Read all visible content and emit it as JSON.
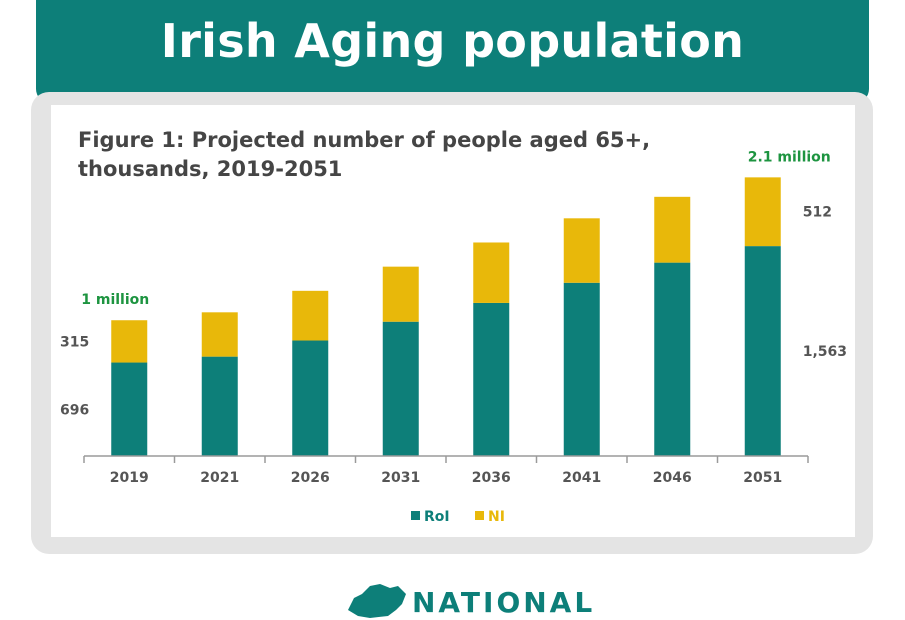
{
  "header": {
    "title": "Irish Aging population"
  },
  "figure": {
    "title": "Figure 1: Projected number of people aged 65+, thousands, 2019-2051"
  },
  "chart_data": {
    "type": "bar",
    "stacked": true,
    "categories": [
      "2019",
      "2021",
      "2026",
      "2031",
      "2036",
      "2041",
      "2046",
      "2051"
    ],
    "series": [
      {
        "name": "RoI",
        "color": "#0d7f79",
        "values": [
          696,
          740,
          860,
          1000,
          1140,
          1290,
          1440,
          1563
        ]
      },
      {
        "name": "NI",
        "color": "#e8b80a",
        "values": [
          315,
          330,
          370,
          410,
          450,
          480,
          490,
          512
        ]
      }
    ],
    "ylim": [
      0,
      2100
    ],
    "grid": false,
    "legend_position": "bottom-center",
    "annotations": [
      {
        "category": "2019",
        "segment_labels": [
          "696",
          "315"
        ],
        "total_label": "1 million"
      },
      {
        "category": "2051",
        "segment_labels": [
          "1,563",
          "512"
        ],
        "total_label": "2.1 million"
      }
    ]
  },
  "legend": [
    {
      "label": "RoI",
      "color": "#0d7f79"
    },
    {
      "label": "NI",
      "color": "#e8b80a"
    }
  ],
  "logo": {
    "text": "NATIONAL"
  }
}
